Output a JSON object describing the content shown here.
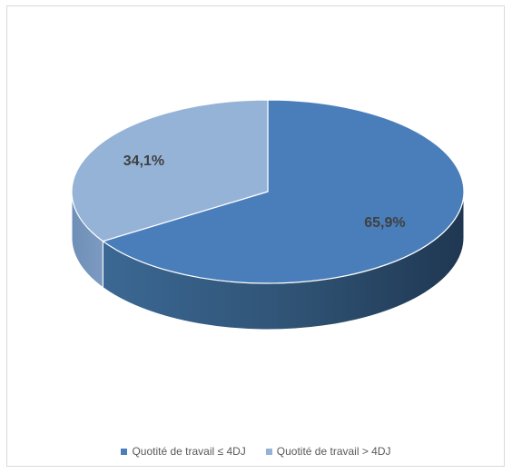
{
  "chart_data": {
    "type": "pie",
    "three_d": true,
    "title": "",
    "slices": [
      {
        "label": "Quotité de travail ≤ 4DJ",
        "value": 65.9,
        "value_label": "65,9%",
        "color": "#4a7ebb"
      },
      {
        "label": "Quotité de travail > 4DJ",
        "value": 34.1,
        "value_label": "34,1%",
        "color": "#95b3d7"
      }
    ],
    "legend_position": "bottom"
  }
}
